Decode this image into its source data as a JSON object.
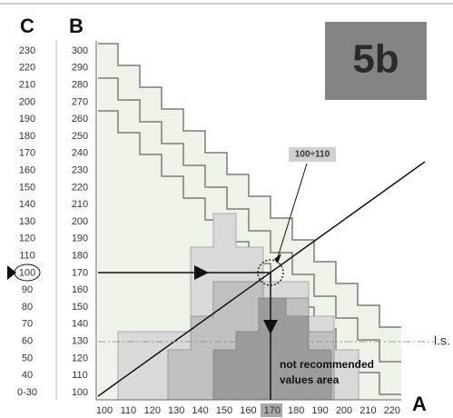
{
  "panel_label": "5b",
  "axes": {
    "c": {
      "title": "C",
      "labels": [
        "230",
        "220",
        "210",
        "200",
        "190",
        "180",
        "170",
        "160",
        "150",
        "140",
        "130",
        "120",
        "110",
        "100",
        "90",
        "80",
        "70",
        "60",
        "50",
        "40",
        "0-30"
      ]
    },
    "b": {
      "title": "B",
      "labels": [
        "300",
        "290",
        "280",
        "270",
        "260",
        "250",
        "240",
        "230",
        "220",
        "210",
        "200",
        "190",
        "180",
        "170",
        "160",
        "150",
        "140",
        "130",
        "120",
        "110",
        "100"
      ]
    },
    "a": {
      "title": "A",
      "labels": [
        "100",
        "110",
        "120",
        "130",
        "140",
        "150",
        "160",
        "170",
        "180",
        "190",
        "200",
        "210",
        "220"
      ]
    }
  },
  "annotation": "100÷110",
  "reference_line": "l.s.",
  "zone_label": [
    "not recommended",
    "values area"
  ]
}
